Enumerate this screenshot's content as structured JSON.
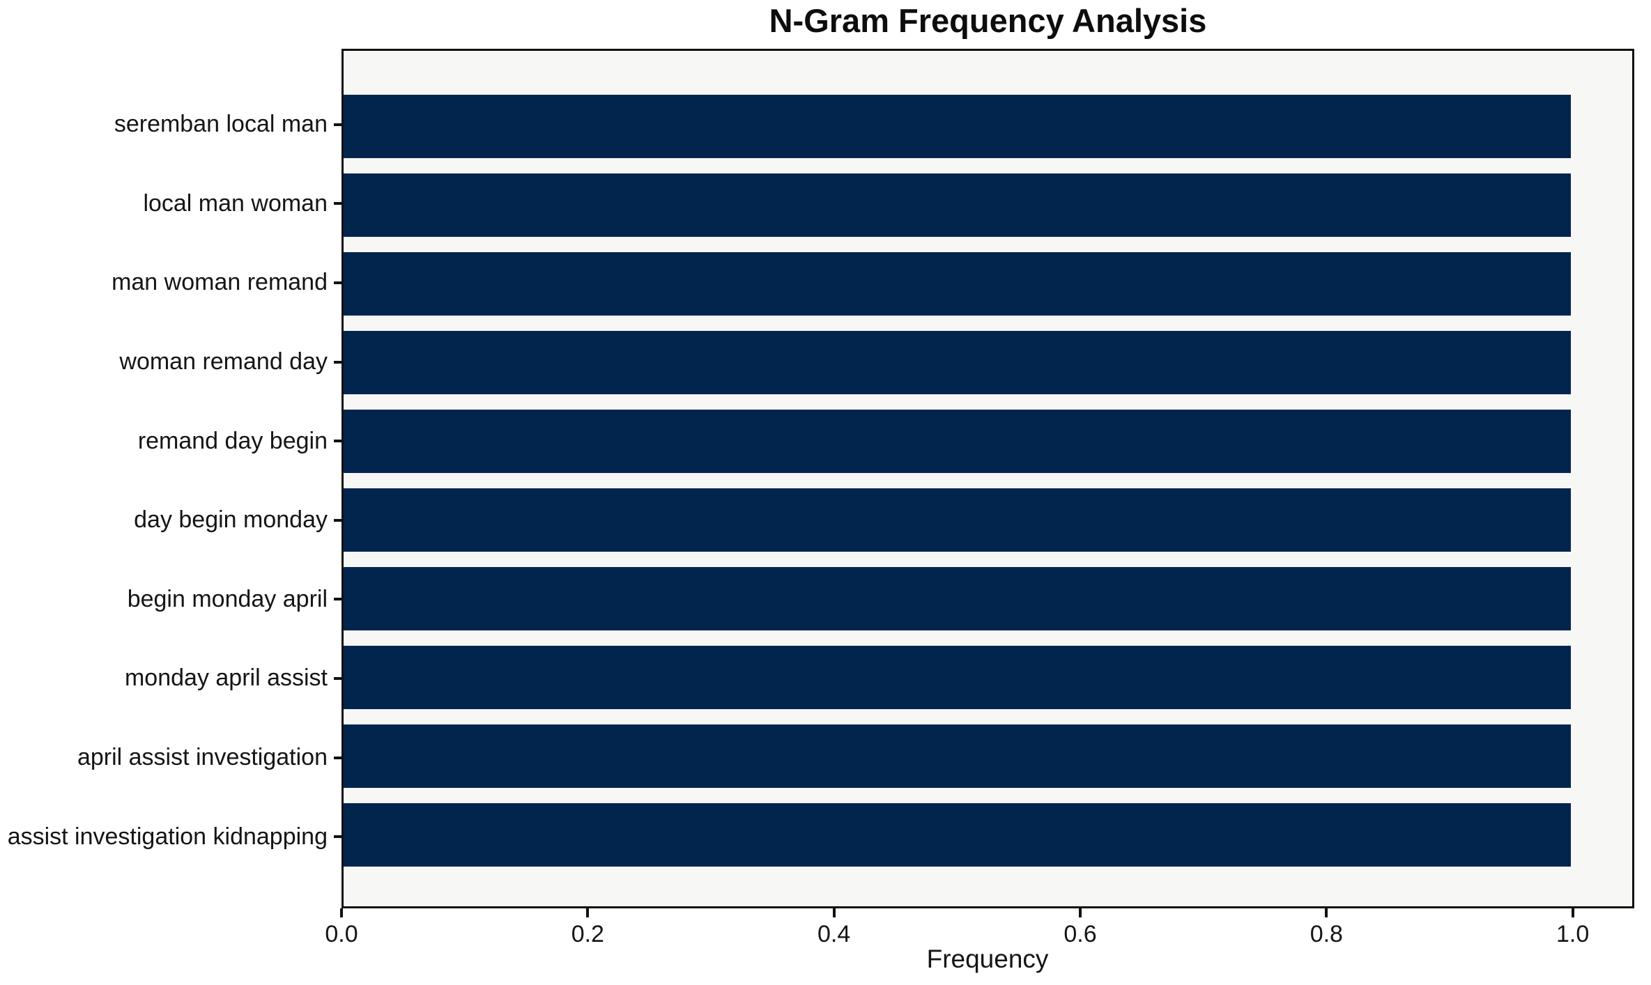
{
  "chart_data": {
    "type": "bar",
    "orientation": "horizontal",
    "title": "N-Gram Frequency Analysis",
    "xlabel": "Frequency",
    "ylabel": "",
    "categories": [
      "seremban local man",
      "local man woman",
      "man woman remand",
      "woman remand day",
      "remand day begin",
      "day begin monday",
      "begin monday april",
      "monday april assist",
      "april assist investigation",
      "assist investigation kidnapping"
    ],
    "values": [
      1.0,
      1.0,
      1.0,
      1.0,
      1.0,
      1.0,
      1.0,
      1.0,
      1.0,
      1.0
    ],
    "xlim": [
      0,
      1.05
    ],
    "xticks": [
      0.0,
      0.2,
      0.4,
      0.6,
      0.8,
      1.0
    ],
    "xtick_labels": [
      "0.0",
      "0.2",
      "0.4",
      "0.6",
      "0.8",
      "1.0"
    ],
    "grid": false,
    "legend_position": "none",
    "colors": {
      "bar": "#02254e",
      "plot_background": "#f7f7f6",
      "figure_background": "#ffffff",
      "spine": "#111111",
      "text": "#151515"
    }
  }
}
